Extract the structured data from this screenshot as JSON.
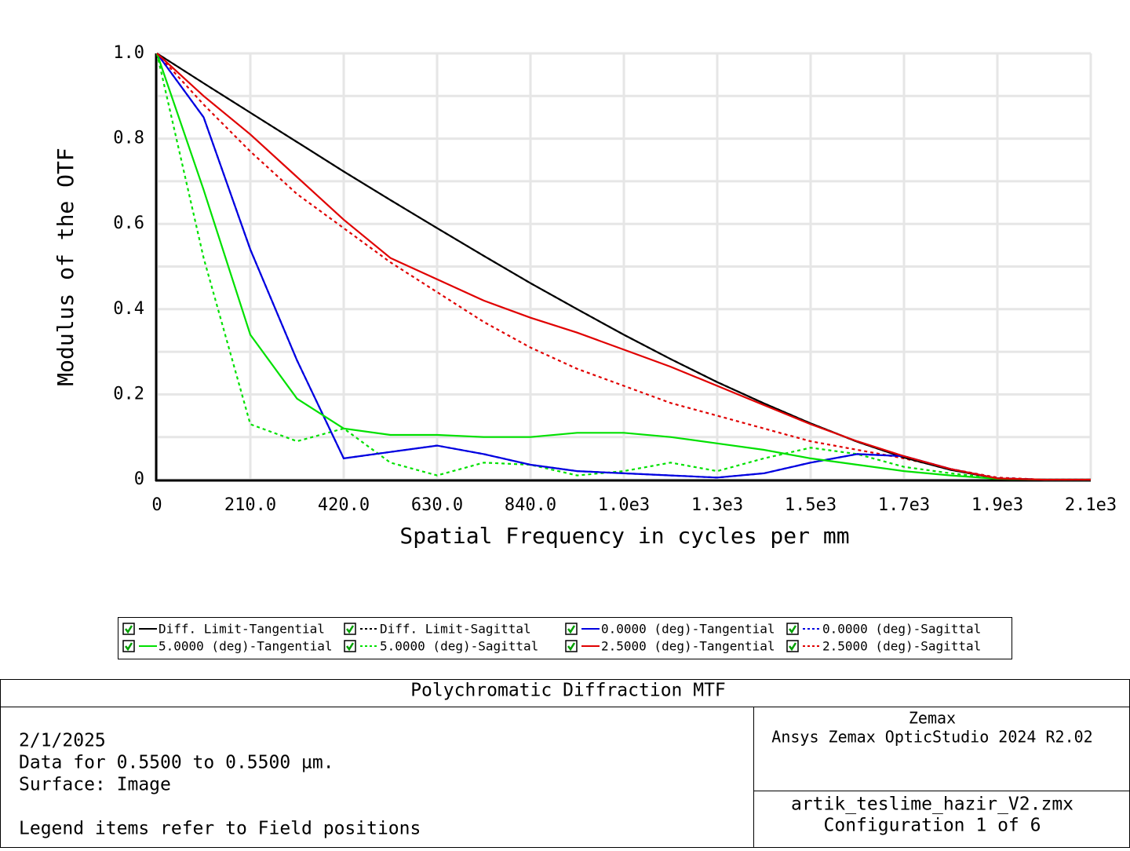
{
  "chart_data": {
    "type": "line",
    "xlabel": "Spatial Frequency in cycles per mm",
    "ylabel": "Modulus of the OTF",
    "xlim": [
      0,
      2100
    ],
    "ylim": [
      0,
      1
    ],
    "xticks": [
      0,
      {
        "value": 210,
        "label": "210.0"
      },
      {
        "value": 420,
        "label": "420.0"
      },
      {
        "value": 630,
        "label": "630.0"
      },
      {
        "value": 840,
        "label": "840.0"
      },
      {
        "value": 1050,
        "label": "1.0e3"
      },
      {
        "value": 1260,
        "label": "1.3e3"
      },
      {
        "value": 1470,
        "label": "1.5e3"
      },
      {
        "value": 1680,
        "label": "1.7e3"
      },
      {
        "value": 1890,
        "label": "1.9e3"
      },
      {
        "value": 2100,
        "label": "2.1e3"
      }
    ],
    "yticks": [
      0,
      0.2,
      0.4,
      0.6,
      0.8,
      {
        "value": 1,
        "label": "1.0"
      }
    ],
    "grid": true,
    "x": [
      0,
      105,
      210,
      315,
      420,
      525,
      630,
      735,
      840,
      945,
      1050,
      1155,
      1260,
      1365,
      1470,
      1575,
      1680,
      1785,
      1890,
      1995,
      2100
    ],
    "series": [
      {
        "name": "Diff. Limit-Tangential",
        "color": "#000000",
        "style": "solid",
        "values": [
          1,
          0.93,
          0.861,
          0.792,
          0.723,
          0.656,
          0.59,
          0.525,
          0.461,
          0.4,
          0.34,
          0.283,
          0.229,
          0.179,
          0.132,
          0.089,
          0.052,
          0.023,
          0.003,
          0,
          0
        ]
      },
      {
        "name": "Diff. Limit-Sagittal",
        "color": "#000000",
        "style": "dotted",
        "values": [
          1,
          0.93,
          0.861,
          0.792,
          0.723,
          0.656,
          0.59,
          0.525,
          0.461,
          0.4,
          0.34,
          0.283,
          0.229,
          0.179,
          0.132,
          0.089,
          0.052,
          0.023,
          0.003,
          0,
          0
        ]
      },
      {
        "name": "0.0000 (deg)-Tangential",
        "color": "#0000e0",
        "style": "solid",
        "values": [
          1,
          0.85,
          0.54,
          0.28,
          0.05,
          0.065,
          0.08,
          0.06,
          0.035,
          0.02,
          0.015,
          0.01,
          0.005,
          0.015,
          0.04,
          0.06,
          0.055,
          0.025,
          0.003,
          0,
          0
        ]
      },
      {
        "name": "0.0000 (deg)-Sagittal",
        "color": "#0000e0",
        "style": "dotted",
        "values": [
          1,
          0.85,
          0.54,
          0.28,
          0.05,
          0.065,
          0.08,
          0.06,
          0.035,
          0.02,
          0.015,
          0.01,
          0.005,
          0.015,
          0.04,
          0.06,
          0.055,
          0.025,
          0.003,
          0,
          0
        ]
      },
      {
        "name": "5.0000 (deg)-Tangential",
        "color": "#00e000",
        "style": "solid",
        "values": [
          1,
          0.68,
          0.34,
          0.19,
          0.12,
          0.105,
          0.105,
          0.1,
          0.1,
          0.11,
          0.11,
          0.1,
          0.085,
          0.07,
          0.05,
          0.035,
          0.02,
          0.01,
          0.002,
          0,
          0
        ]
      },
      {
        "name": "5.0000 (deg)-Sagittal",
        "color": "#00e000",
        "style": "dotted",
        "values": [
          1,
          0.52,
          0.13,
          0.09,
          0.12,
          0.04,
          0.01,
          0.04,
          0.035,
          0.01,
          0.02,
          0.04,
          0.02,
          0.05,
          0.075,
          0.06,
          0.03,
          0.015,
          0.003,
          0,
          0
        ]
      },
      {
        "name": "2.5000 (deg)-Tangential",
        "color": "#e00000",
        "style": "solid",
        "values": [
          1,
          0.9,
          0.81,
          0.71,
          0.61,
          0.52,
          0.47,
          0.42,
          0.38,
          0.345,
          0.305,
          0.265,
          0.22,
          0.175,
          0.13,
          0.09,
          0.055,
          0.025,
          0.003,
          0,
          0
        ]
      },
      {
        "name": "2.5000 (deg)-Sagittal",
        "color": "#e00000",
        "style": "dotted",
        "values": [
          1,
          0.88,
          0.77,
          0.67,
          0.59,
          0.51,
          0.44,
          0.37,
          0.31,
          0.26,
          0.22,
          0.18,
          0.15,
          0.12,
          0.09,
          0.07,
          0.05,
          0.025,
          0.005,
          0,
          0
        ]
      }
    ]
  },
  "info": {
    "title": "Polychromatic Diffraction MTF",
    "date": "2/1/2025",
    "data_line": "Data for 0.5500 to 0.5500 µm.",
    "surface": "Surface: Image",
    "legend_note": "Legend items refer to Field positions",
    "software": "Zemax",
    "version": "Ansys Zemax OpticStudio 2024 R2.02",
    "file": "artik_teslime_hazir_V2.zmx",
    "configuration": "Configuration 1 of 6"
  }
}
